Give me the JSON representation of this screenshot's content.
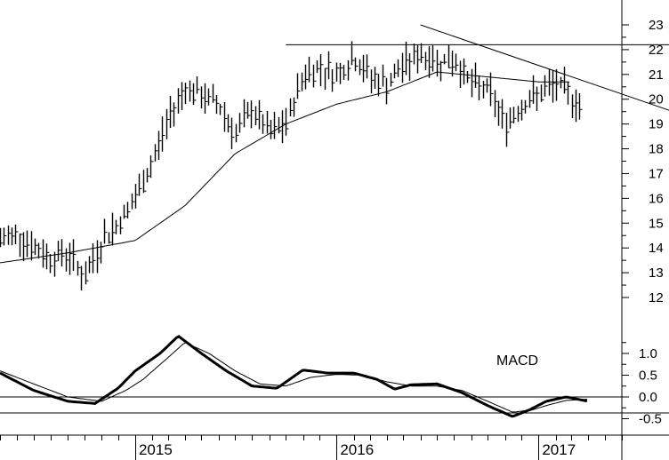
{
  "chart_data": [
    {
      "type": "ohlc",
      "panel": "price",
      "y_ticks": [
        12,
        13,
        14,
        15,
        16,
        17,
        18,
        19,
        20,
        21,
        22,
        23
      ],
      "ylim": [
        11.4,
        23.4
      ],
      "y_scale": "linear",
      "axis_side": "right",
      "time_range": [
        "2014-05",
        "2017-06"
      ],
      "x_labels": [
        "2015",
        "2016",
        "2017"
      ],
      "bars_keypoints": [
        [
          "2014-05-01",
          14.3
        ],
        [
          "2014-06-01",
          14.6
        ],
        [
          "2014-07-01",
          14.0
        ],
        [
          "2014-08-01",
          13.6
        ],
        [
          "2014-09-01",
          13.8
        ],
        [
          "2014-10-01",
          12.8
        ],
        [
          "2014-11-01",
          14.3
        ],
        [
          "2014-12-01",
          15.0
        ],
        [
          "2015-01-01",
          16.0
        ],
        [
          "2015-02-01",
          17.5
        ],
        [
          "2015-03-01",
          19.2
        ],
        [
          "2015-04-01",
          20.5
        ],
        [
          "2015-05-01",
          20.1
        ],
        [
          "2015-06-01",
          19.8
        ],
        [
          "2015-07-01",
          18.6
        ],
        [
          "2015-08-01",
          19.6
        ],
        [
          "2015-09-01",
          18.6
        ],
        [
          "2015-10-01",
          19.0
        ],
        [
          "2015-11-01",
          21.0
        ],
        [
          "2015-12-01",
          21.3
        ],
        [
          "2016-01-01",
          21.0
        ],
        [
          "2016-02-01",
          21.7
        ],
        [
          "2016-03-01",
          20.9
        ],
        [
          "2016-04-01",
          20.6
        ],
        [
          "2016-05-01",
          21.4
        ],
        [
          "2016-06-01",
          21.8
        ],
        [
          "2016-07-01",
          21.5
        ],
        [
          "2016-08-01",
          21.6
        ],
        [
          "2016-09-01",
          20.6
        ],
        [
          "2016-10-01",
          20.4
        ],
        [
          "2016-11-01",
          19.0
        ],
        [
          "2016-12-01",
          19.8
        ],
        [
          "2017-01-01",
          20.2
        ],
        [
          "2017-02-01",
          20.6
        ],
        [
          "2017-03-01",
          20.1
        ],
        [
          "2017-04-01",
          19.4
        ]
      ],
      "moving_average_keypoints": [
        [
          "2014-05-01",
          13.4
        ],
        [
          "2014-09-01",
          13.8
        ],
        [
          "2015-01-01",
          14.3
        ],
        [
          "2015-04-01",
          15.7
        ],
        [
          "2015-07-01",
          17.8
        ],
        [
          "2015-10-01",
          19.0
        ],
        [
          "2016-01-01",
          19.8
        ],
        [
          "2016-04-01",
          20.3
        ],
        [
          "2016-07-01",
          21.1
        ],
        [
          "2016-10-01",
          20.9
        ],
        [
          "2017-01-01",
          20.7
        ],
        [
          "2017-03-01",
          20.7
        ]
      ],
      "resistance_line": {
        "start": [
          "2015-10-01",
          22.2
        ],
        "end": [
          "2017-06-01",
          22.2
        ]
      },
      "trend_line": {
        "start": [
          "2016-06-01",
          23.0
        ],
        "end": [
          "2017-06-01",
          19.9
        ]
      }
    },
    {
      "type": "line",
      "panel": "indicator",
      "annotation": "MACD",
      "y_ticks": [
        -0.5,
        0.0,
        0.5,
        1.0
      ],
      "y_tick_labels": [
        "-0.5",
        "0.0",
        "0.5",
        "1.0"
      ],
      "ylim": [
        -0.8,
        1.65
      ],
      "zero_line": 0.0,
      "series": [
        {
          "role": "macd",
          "style": "thick",
          "keypoints": [
            [
              "2014-05-01",
              0.55
            ],
            [
              "2014-07-01",
              0.15
            ],
            [
              "2014-09-01",
              -0.1
            ],
            [
              "2014-10-20",
              -0.15
            ],
            [
              "2014-12-01",
              0.2
            ],
            [
              "2015-01-01",
              0.6
            ],
            [
              "2015-02-15",
              1.0
            ],
            [
              "2015-03-20",
              1.4
            ],
            [
              "2015-05-01",
              1.0
            ],
            [
              "2015-06-15",
              0.6
            ],
            [
              "2015-08-01",
              0.25
            ],
            [
              "2015-09-15",
              0.2
            ],
            [
              "2015-11-01",
              0.62
            ],
            [
              "2015-12-15",
              0.55
            ],
            [
              "2016-02-01",
              0.55
            ],
            [
              "2016-03-15",
              0.4
            ],
            [
              "2016-04-15",
              0.18
            ],
            [
              "2016-05-15",
              0.28
            ],
            [
              "2016-07-01",
              0.3
            ],
            [
              "2016-08-15",
              0.1
            ],
            [
              "2016-10-01",
              -0.2
            ],
            [
              "2016-11-15",
              -0.45
            ],
            [
              "2016-12-15",
              -0.3
            ],
            [
              "2017-01-15",
              -0.1
            ],
            [
              "2017-02-20",
              0.0
            ],
            [
              "2017-04-01",
              -0.1
            ]
          ]
        },
        {
          "role": "signal",
          "style": "thin",
          "keypoints": [
            [
              "2014-05-01",
              0.6
            ],
            [
              "2014-07-01",
              0.3
            ],
            [
              "2014-09-01",
              0.0
            ],
            [
              "2014-11-01",
              -0.1
            ],
            [
              "2014-12-15",
              0.15
            ],
            [
              "2015-01-15",
              0.4
            ],
            [
              "2015-03-01",
              0.9
            ],
            [
              "2015-04-01",
              1.25
            ],
            [
              "2015-05-15",
              1.0
            ],
            [
              "2015-07-01",
              0.6
            ],
            [
              "2015-08-15",
              0.3
            ],
            [
              "2015-10-01",
              0.25
            ],
            [
              "2015-11-15",
              0.45
            ],
            [
              "2016-01-01",
              0.52
            ],
            [
              "2016-02-15",
              0.5
            ],
            [
              "2016-04-01",
              0.35
            ],
            [
              "2016-05-15",
              0.25
            ],
            [
              "2016-07-01",
              0.25
            ],
            [
              "2016-08-15",
              0.15
            ],
            [
              "2016-10-01",
              -0.1
            ],
            [
              "2016-11-15",
              -0.35
            ],
            [
              "2016-12-20",
              -0.3
            ],
            [
              "2017-01-20",
              -0.18
            ],
            [
              "2017-02-20",
              -0.08
            ],
            [
              "2017-04-01",
              -0.05
            ]
          ]
        }
      ]
    }
  ]
}
